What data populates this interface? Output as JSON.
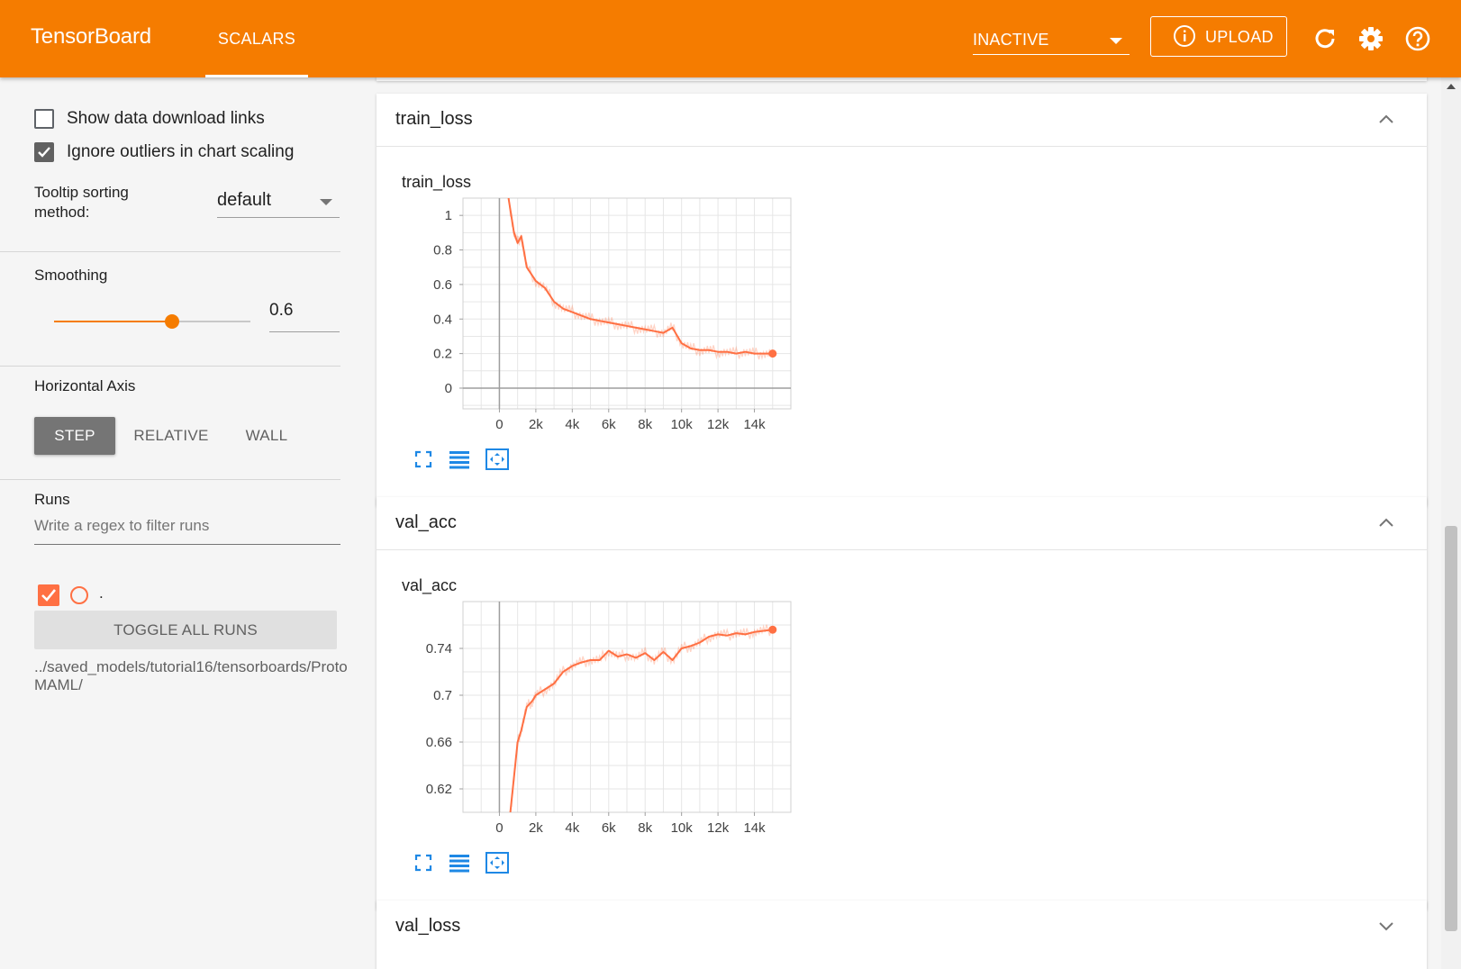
{
  "app": {
    "title": "TensorBoard",
    "tab": "SCALARS",
    "run_select": "INACTIVE",
    "upload_label": "UPLOAD",
    "icons": [
      "info-icon",
      "refresh-icon",
      "settings-icon",
      "help-icon"
    ],
    "accent_color": "#f57c00"
  },
  "sidebar": {
    "show_download_links": {
      "label": "Show data download links",
      "checked": false
    },
    "ignore_outliers": {
      "label": "Ignore outliers in chart scaling",
      "checked": true
    },
    "tooltip_sorting": {
      "label": "Tooltip sorting method:",
      "value": "default"
    },
    "smoothing": {
      "label": "Smoothing",
      "value": "0.6",
      "fraction": 0.6
    },
    "horizontal_axis": {
      "label": "Horizontal Axis",
      "options": [
        "STEP",
        "RELATIVE",
        "WALL"
      ],
      "selected": "STEP"
    },
    "runs": {
      "label": "Runs",
      "filter_placeholder": "Write a regex to filter runs",
      "run_name": ".",
      "run_color": "#ff7043",
      "toggle_label": "TOGGLE ALL RUNS",
      "logdir": "../saved_models/tutorial16/tensorboards/ProtoMAML/"
    }
  },
  "cards": [
    {
      "title": "train_loss",
      "expanded": true
    },
    {
      "title": "val_acc",
      "expanded": true
    },
    {
      "title": "val_loss",
      "expanded": false
    }
  ],
  "chart_data": [
    {
      "type": "line",
      "title": "train_loss",
      "xlabel": "",
      "ylabel": "",
      "xlim": [
        -2000,
        16000
      ],
      "ylim": [
        -0.12,
        1.1
      ],
      "xticks": [
        0,
        2000,
        4000,
        6000,
        8000,
        10000,
        12000,
        14000
      ],
      "xtick_labels": [
        "0",
        "2k",
        "4k",
        "6k",
        "8k",
        "10k",
        "12k",
        "14k"
      ],
      "yticks": [
        0,
        0.2,
        0.4,
        0.6,
        0.8,
        1
      ],
      "ytick_labels": [
        "0",
        "0.2",
        "0.4",
        "0.6",
        "0.8",
        "1"
      ],
      "grid": true,
      "series": [
        {
          "color": "#ff7043",
          "x": [
            500,
            800,
            1000,
            1200,
            1500,
            2000,
            2500,
            3000,
            3500,
            4000,
            4500,
            5000,
            5500,
            6000,
            6500,
            7000,
            7500,
            8000,
            8500,
            9000,
            9500,
            10000,
            10500,
            11000,
            11500,
            12000,
            12500,
            13000,
            13500,
            14000,
            14500,
            15000
          ],
          "y": [
            1.1,
            0.9,
            0.84,
            0.88,
            0.7,
            0.62,
            0.58,
            0.5,
            0.46,
            0.44,
            0.42,
            0.4,
            0.39,
            0.38,
            0.37,
            0.36,
            0.35,
            0.34,
            0.33,
            0.32,
            0.35,
            0.26,
            0.23,
            0.22,
            0.22,
            0.21,
            0.21,
            0.2,
            0.21,
            0.2,
            0.2,
            0.2
          ]
        }
      ]
    },
    {
      "type": "line",
      "title": "val_acc",
      "xlabel": "",
      "ylabel": "",
      "xlim": [
        -2000,
        16000
      ],
      "ylim": [
        0.6,
        0.78
      ],
      "xticks": [
        0,
        2000,
        4000,
        6000,
        8000,
        10000,
        12000,
        14000
      ],
      "xtick_labels": [
        "0",
        "2k",
        "4k",
        "6k",
        "8k",
        "10k",
        "12k",
        "14k"
      ],
      "yticks": [
        0.62,
        0.66,
        0.7,
        0.74
      ],
      "ytick_labels": [
        "0.62",
        "0.66",
        "0.7",
        "0.74"
      ],
      "grid": true,
      "series": [
        {
          "color": "#ff7043",
          "x": [
            600,
            800,
            1000,
            1200,
            1500,
            1800,
            2000,
            2500,
            3000,
            3500,
            4000,
            4500,
            5000,
            5500,
            6000,
            6500,
            7000,
            7500,
            8000,
            8500,
            9000,
            9500,
            10000,
            10500,
            11000,
            11500,
            12000,
            12500,
            13000,
            13500,
            14000,
            14500,
            15000
          ],
          "y": [
            0.6,
            0.63,
            0.66,
            0.67,
            0.69,
            0.695,
            0.7,
            0.705,
            0.71,
            0.72,
            0.725,
            0.728,
            0.73,
            0.73,
            0.738,
            0.733,
            0.735,
            0.732,
            0.736,
            0.73,
            0.737,
            0.73,
            0.74,
            0.742,
            0.745,
            0.75,
            0.752,
            0.751,
            0.753,
            0.752,
            0.754,
            0.755,
            0.756
          ]
        }
      ]
    }
  ]
}
